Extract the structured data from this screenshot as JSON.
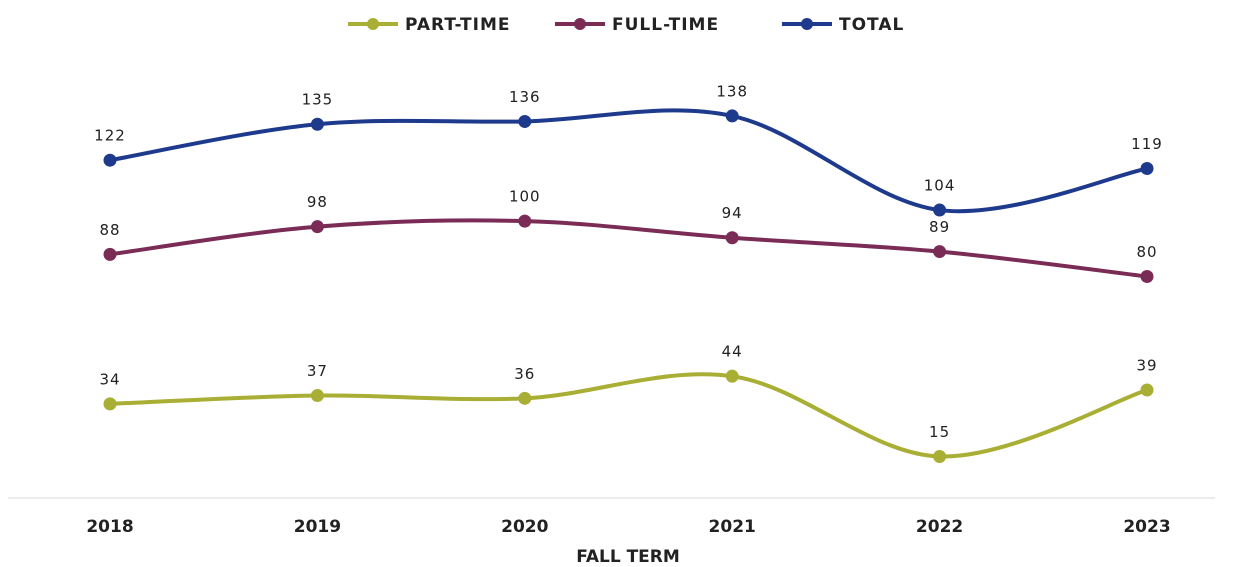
{
  "chart_data": {
    "type": "line",
    "x_label": "FALL TERM",
    "categories": [
      "2018",
      "2019",
      "2020",
      "2021",
      "2022",
      "2023"
    ],
    "series": [
      {
        "name": "PART-TIME",
        "color": "#a9ae34",
        "values": [
          34,
          37,
          36,
          44,
          15,
          39
        ]
      },
      {
        "name": "FULL-TIME",
        "color": "#7a2c56",
        "values": [
          88,
          98,
          100,
          94,
          89,
          80
        ]
      },
      {
        "name": "TOTAL",
        "color": "#1e3a8c",
        "values": [
          122,
          135,
          136,
          138,
          104,
          119
        ]
      }
    ],
    "ylim": [
      0,
      160
    ],
    "smooth": true,
    "legend": "top"
  }
}
